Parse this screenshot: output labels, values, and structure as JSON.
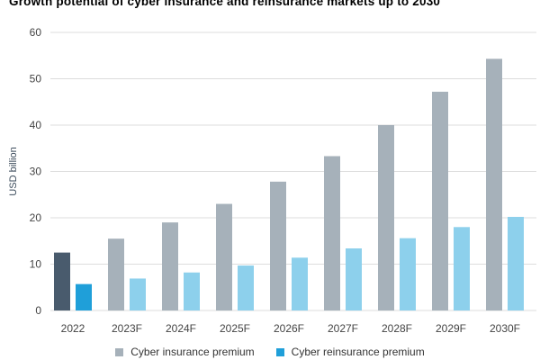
{
  "chart_data": {
    "type": "bar",
    "title": "Growth potential of cyber insurance and reinsurance markets up to 2030",
    "xlabel": "",
    "ylabel": "USD billion",
    "categories": [
      "2022",
      "2023F",
      "2024F",
      "2025F",
      "2026F",
      "2027F",
      "2028F",
      "2029F",
      "2030F"
    ],
    "series": [
      {
        "name": "Cyber insurance premium",
        "values": [
          12.5,
          15.5,
          19.0,
          23.0,
          27.8,
          33.3,
          40.0,
          47.2,
          54.3
        ]
      },
      {
        "name": "Cyber reinsurance premium",
        "values": [
          5.7,
          6.9,
          8.2,
          9.7,
          11.4,
          13.4,
          15.6,
          18.0,
          20.2
        ]
      }
    ],
    "yticks": [
      0,
      10,
      20,
      30,
      40,
      50,
      60
    ],
    "ylim": [
      0,
      60
    ],
    "grid": true,
    "legend_position": "bottom",
    "colors": {
      "insurance": "#a6b1ba",
      "reinsurance": "#8dd0ec",
      "insurance_actual": "#495b6d",
      "reinsurance_actual": "#1f9fd9",
      "gridline": "#dddddd"
    }
  }
}
